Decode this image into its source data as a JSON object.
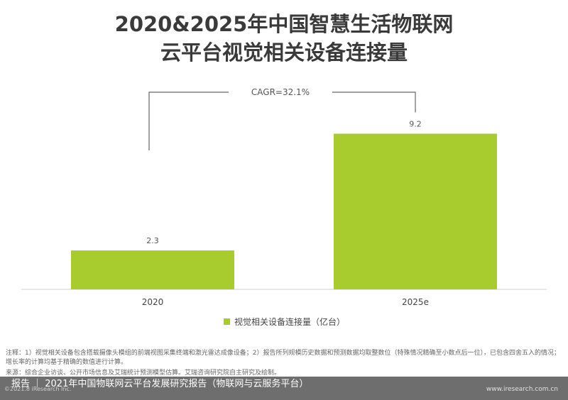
{
  "title_line1": "2020&2025年中国智慧生活物联网",
  "title_line2": "云平台视觉相关设备连接量",
  "chart_data": {
    "type": "bar",
    "categories": [
      "2020",
      "2025e"
    ],
    "series": [
      {
        "name": "视觉相关设备连接量（亿台）",
        "values": [
          2.3,
          9.2
        ]
      }
    ],
    "value_labels": [
      "2.3",
      "9.2"
    ],
    "ylim": [
      0,
      10.5
    ],
    "grid": false,
    "legend": "bottom-center",
    "bar_color": "#a8cc2e",
    "annotation": "CAGR=32.1%"
  },
  "note": "注释：1）视觉相关设备包含搭载摄像头模组的前端视图采集终端和激光雷达成像设备；2）报告所列规模历史数据和预测数据均取整数位（特殊情况精确至小数点后一位），已包含四舍五入的情况；增长率的计算均基于精确的数值进行计算。",
  "source": "来源：综合企业访谈、公开市场信息及艾瑞统计预测模型估算。艾瑞咨询研究院自主研究及绘制。",
  "footer": {
    "text": "报告 ｜ 2021年中国物联网云平台发展研究报告（物联网与云服务平台）",
    "copyright": "©2021.8 iResearch Inc.",
    "url": "www.iresearch.com.cn"
  }
}
